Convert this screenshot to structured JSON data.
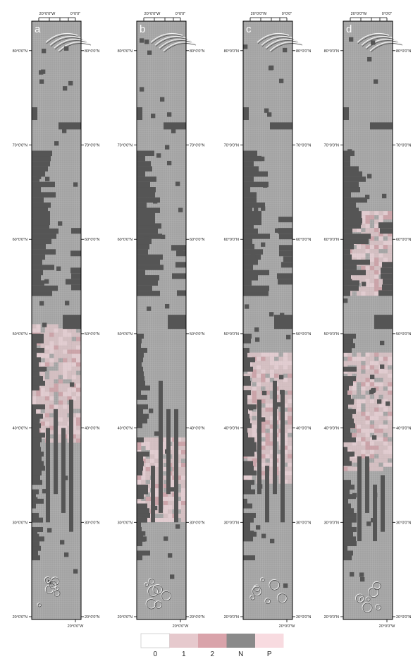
{
  "panels": [
    {
      "letter": "a",
      "top_labels": [
        "20°0'0\"W",
        "0°0'0\""
      ],
      "bottom_label": "20°0'0\"W"
    },
    {
      "letter": "b",
      "top_labels": [
        "20°0'0\"W",
        "0°0'0\""
      ],
      "bottom_label": "20°0'0\"W"
    },
    {
      "letter": "c",
      "top_labels": [
        "20°0'0\"W",
        "0°0'0\""
      ],
      "bottom_label": "20°0'0\"W"
    },
    {
      "letter": "d",
      "top_labels": [
        "20°0'0\"W",
        "0°0'0\""
      ],
      "bottom_label": "20°0'0\"W"
    }
  ],
  "latitude_labels": [
    "80°0'0\"N",
    "70°0'0\"N",
    "60°0'0\"N",
    "50°0'0\"N",
    "40°0'0\"N",
    "30°0'0\"N",
    "20°0'0\"N"
  ],
  "legend": [
    {
      "label": "0",
      "color": "#ffffff"
    },
    {
      "label": "1",
      "color": "#e6c9cd"
    },
    {
      "label": "2",
      "color": "#d9a3aa"
    },
    {
      "label": "N",
      "color": "#8a8a8a"
    },
    {
      "label": "P",
      "color": "#f8dbe0"
    }
  ],
  "colors": {
    "terrain": "#a6a6a6",
    "no_data": "#555555",
    "frame": "#000000"
  },
  "pink_zones": [
    {
      "panel": "a",
      "lat_range": [
        38,
        51
      ]
    },
    {
      "panel": "b",
      "lat_range": [
        30,
        39
      ]
    },
    {
      "panel": "c",
      "lat_range": [
        34,
        48
      ]
    },
    {
      "panel": "d",
      "lat_range": [
        35,
        48
      ]
    },
    {
      "panel": "d",
      "lat_range": [
        54,
        63
      ]
    }
  ]
}
